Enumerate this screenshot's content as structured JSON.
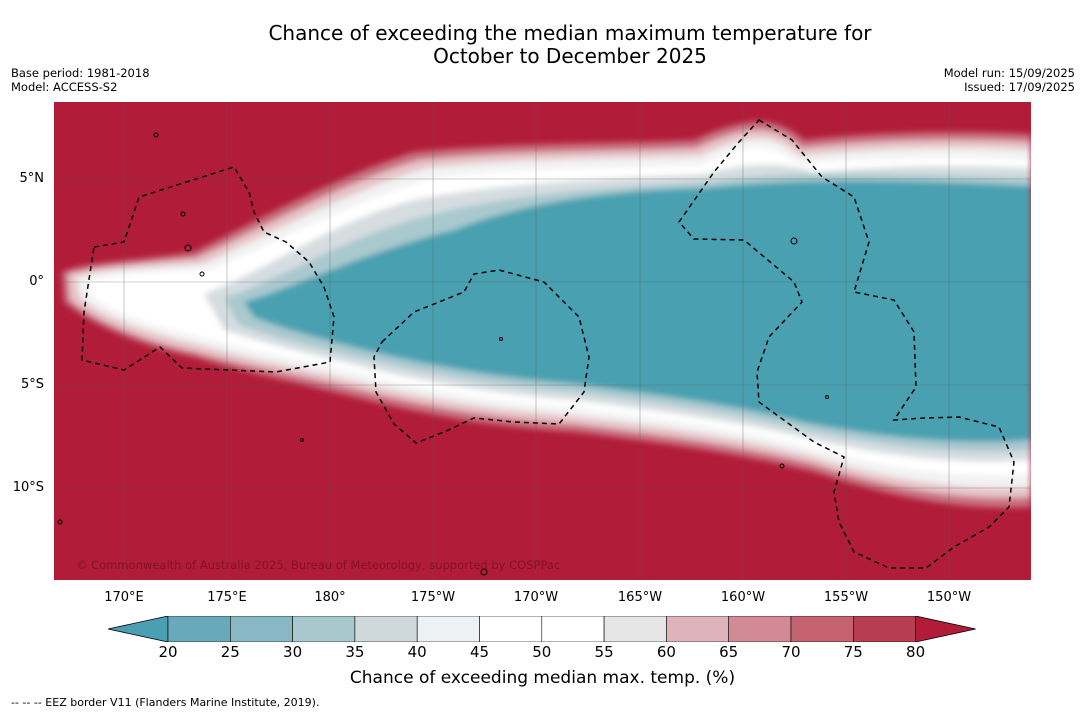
{
  "title": {
    "line1": "Chance of exceeding the median maximum temperature for",
    "line2": "October to December 2025"
  },
  "meta": {
    "base_period": "Base period: 1981-2018",
    "model": "Model: ACCESS-S2",
    "model_run": "Model run: 15/09/2025",
    "issued": "Issued: 17/09/2025"
  },
  "map": {
    "copyright": "© Commonwealth of Australia 2025, Bureau of Meteorology, supported by COSPPac",
    "lat_labels": [
      "5°N",
      "0°",
      "5°S",
      "10°S"
    ],
    "lon_labels": [
      "170°E",
      "175°E",
      "180°",
      "175°W",
      "170°W",
      "165°W",
      "160°W",
      "155°W",
      "150°W"
    ],
    "colors": {
      "high": "#b11d38",
      "low": "#49a0b1"
    }
  },
  "colorbar": {
    "ticks": [
      "20",
      "25",
      "30",
      "35",
      "40",
      "45",
      "50",
      "55",
      "60",
      "65",
      "70",
      "75",
      "80"
    ],
    "colors": [
      "#4aa0b2",
      "#69aaba",
      "#87b8c4",
      "#a8c8cd",
      "#cfd8db",
      "#eef1f3",
      "#ffffff",
      "#ffffff",
      "#e6e6e6",
      "#deb4ba",
      "#d28a94",
      "#c56272",
      "#b73e52",
      "#b11d38"
    ],
    "label": "Chance of exceeding median max. temp. (%)"
  },
  "footnote": "--  --  -- EEZ border V11 (Flanders Marine Institute, 2019)."
}
